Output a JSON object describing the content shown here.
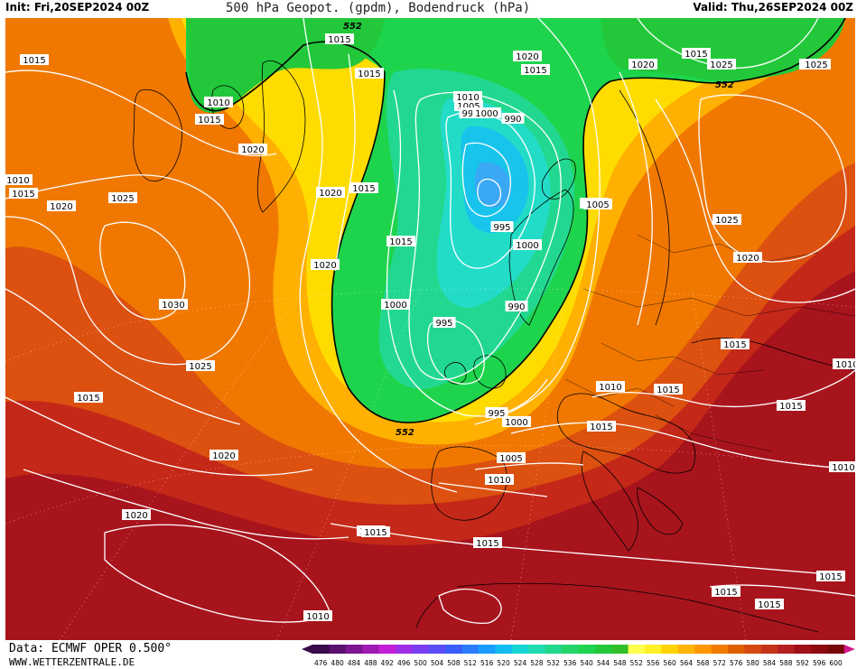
{
  "header": {
    "init": "Init: Fri,20SEP2024 00Z",
    "title": "500 hPa Geopot. (gpdm), Bodendruck (hPa)",
    "valid": "Valid: Thu,26SEP2024 00Z"
  },
  "footer": {
    "source": "Data: ECMWF OPER 0.500°",
    "url": "WWW.WETTERZENTRALE.DE"
  },
  "legend": {
    "values": [
      "476",
      "480",
      "484",
      "488",
      "492",
      "496",
      "500",
      "504",
      "508",
      "512",
      "516",
      "520",
      "524",
      "528",
      "532",
      "536",
      "540",
      "544",
      "548",
      "552",
      "556",
      "560",
      "564",
      "568",
      "572",
      "576",
      "580",
      "584",
      "588",
      "592",
      "596",
      "600"
    ],
    "colors": [
      "#3a0a4a",
      "#5b0f6e",
      "#7d1491",
      "#a01ab4",
      "#c21fd6",
      "#9e2ee6",
      "#7a3df0",
      "#5a4cf5",
      "#3a5cfa",
      "#2a7cfb",
      "#1a9cfc",
      "#12bcf0",
      "#18d4d4",
      "#20dcb0",
      "#22d88c",
      "#24d46a",
      "#1ed450",
      "#22c83a",
      "#30c02a",
      "#ffff50",
      "#fff028",
      "#ffd200",
      "#ffb400",
      "#ff9800",
      "#f07c00",
      "#e06000",
      "#d44a10",
      "#c43418",
      "#b42020",
      "#a01018",
      "#8c0a10",
      "#780808"
    ]
  },
  "pressure_labels": [
    {
      "v": "1015"
    },
    {
      "v": "1015"
    },
    {
      "v": "1015"
    },
    {
      "v": "1010"
    },
    {
      "v": "1015"
    },
    {
      "v": "1020"
    },
    {
      "v": "1010"
    },
    {
      "v": "1015"
    },
    {
      "v": "1020"
    },
    {
      "v": "1025"
    },
    {
      "v": "1030"
    },
    {
      "v": "1025"
    },
    {
      "v": "1015"
    },
    {
      "v": "1020"
    },
    {
      "v": "1020"
    },
    {
      "v": "1015"
    },
    {
      "v": "1010"
    },
    {
      "v": "1025"
    },
    {
      "v": "1020"
    },
    {
      "v": "1015"
    },
    {
      "v": "1020"
    },
    {
      "v": "1015"
    },
    {
      "v": "1020"
    },
    {
      "v": "1015"
    },
    {
      "v": "1010"
    },
    {
      "v": "1005"
    },
    {
      "v": "995"
    },
    {
      "v": "1000"
    },
    {
      "v": "990"
    },
    {
      "v": "995"
    },
    {
      "v": "1000"
    },
    {
      "v": "995"
    },
    {
      "v": "1000"
    },
    {
      "v": "990"
    },
    {
      "v": "995"
    },
    {
      "v": "1000"
    },
    {
      "v": "1005"
    },
    {
      "v": "1010"
    },
    {
      "v": "1015"
    },
    {
      "v": "1020"
    },
    {
      "v": "1015"
    },
    {
      "v": "1025"
    },
    {
      "v": "1005"
    },
    {
      "v": "1025"
    },
    {
      "v": "1020"
    },
    {
      "v": "1015"
    },
    {
      "v": "1010"
    },
    {
      "v": "1015"
    },
    {
      "v": "1015"
    },
    {
      "v": "1015"
    },
    {
      "v": "1010"
    },
    {
      "v": "1015"
    },
    {
      "v": "1015"
    },
    {
      "v": "1015"
    },
    {
      "v": "1020"
    },
    {
      "v": "1005"
    },
    {
      "v": "1010"
    },
    {
      "v": "1015"
    }
  ],
  "height_labels": [
    {
      "v": "552"
    },
    {
      "v": "552"
    },
    {
      "v": "552"
    }
  ]
}
